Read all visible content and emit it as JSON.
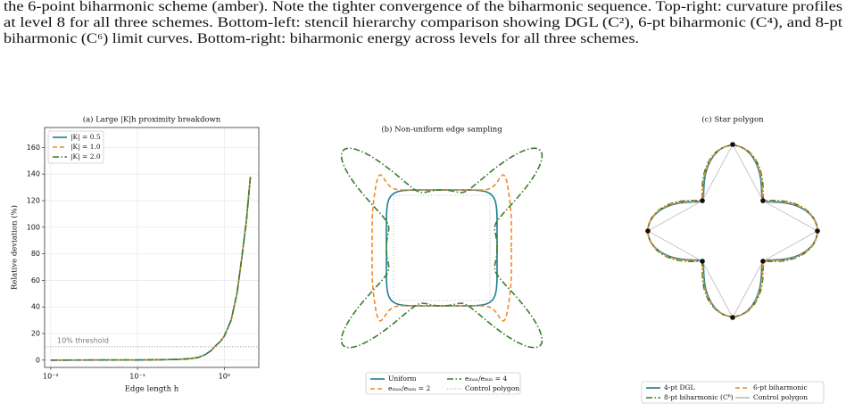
{
  "caption": {
    "lines": [
      "the 6-point biharmonic scheme (amber). Note the tighter convergence of the biharmonic sequence. Top-right: curvature profiles",
      "at level 8 for all three schemes. Bottom-left: stencil hierarchy comparison showing DGL (C²), 6-pt biharmonic (C⁴), and 8-pt",
      "biharmonic (C⁶) limit curves. Bottom-right: biharmonic energy across levels for all three schemes."
    ]
  },
  "chart_data": [
    {
      "type": "line",
      "title": "(a) Large |K|h proximity breakdown",
      "xlabel": "Edge length h",
      "ylabel": "Relative deviation (%)",
      "xscale": "log",
      "grid": true,
      "legend": "upper left",
      "x": [
        0.01,
        0.1,
        0.2,
        0.3,
        0.4,
        0.5,
        0.6,
        0.7,
        0.8,
        0.9,
        1.0,
        1.2,
        1.4,
        1.6,
        1.8,
        2.0
      ],
      "series": [
        {
          "name": "|K| = 0.5",
          "color": "#1a7f93",
          "dash": "solid",
          "values": [
            0,
            0.1,
            0.3,
            0.6,
            1.1,
            2,
            4,
            7,
            11,
            14,
            18,
            30,
            50,
            78,
            105,
            138
          ]
        },
        {
          "name": "|K| = 1.0",
          "color": "#ee8a2a",
          "dash": "dashed",
          "values": [
            0,
            0.1,
            0.3,
            0.6,
            1.1,
            2,
            4,
            7,
            11,
            14,
            18,
            30,
            50,
            78,
            105,
            138
          ]
        },
        {
          "name": "|K| = 2.0",
          "color": "#3a7d2c",
          "dash": "dashdot",
          "values": [
            0,
            0.1,
            0.3,
            0.6,
            1.1,
            2,
            4,
            7,
            11,
            14,
            18,
            30,
            50,
            78,
            105,
            138
          ]
        }
      ],
      "threshold": {
        "value": 10,
        "label": "10% threshold"
      },
      "xlim": [
        0.0085,
        2.5
      ],
      "ylim": [
        -5.5,
        175
      ],
      "xticks": [
        {
          "value": 0.01,
          "label": "10⁻²"
        },
        {
          "value": 0.1,
          "label": "10⁻¹"
        },
        {
          "value": 1,
          "label": "10⁰"
        }
      ],
      "yticks": [
        0,
        20,
        40,
        60,
        80,
        100,
        120,
        140,
        160
      ]
    },
    {
      "type": "shape",
      "title": "(b) Non-uniform edge sampling",
      "series": [
        {
          "name": "Uniform",
          "color": "#1a7f93",
          "dash": "solid"
        },
        {
          "name": "eₘₐₓ/eₘᵢₙ = 2",
          "color": "#ee8a2a",
          "dash": "dashed"
        },
        {
          "name": "eₘₐₓ/eₘᵢₙ = 4",
          "color": "#3a7d2c",
          "dash": "dashdot"
        },
        {
          "name": "Control polygon",
          "color": "#c8c8c8",
          "dash": "dotted"
        }
      ]
    },
    {
      "type": "shape",
      "title": "(c) Star polygon",
      "series": [
        {
          "name": "4-pt DGL",
          "color": "#1a7f93",
          "dash": "solid"
        },
        {
          "name": "8-pt biharmonic (C⁶)",
          "color": "#3a7d2c",
          "dash": "dashdot"
        },
        {
          "name": "6-pt biharmonic",
          "color": "#ee8a2a",
          "dash": "dashed"
        },
        {
          "name": "Control polygon",
          "color": "#bbbbbb",
          "dash": "solid"
        }
      ]
    }
  ]
}
